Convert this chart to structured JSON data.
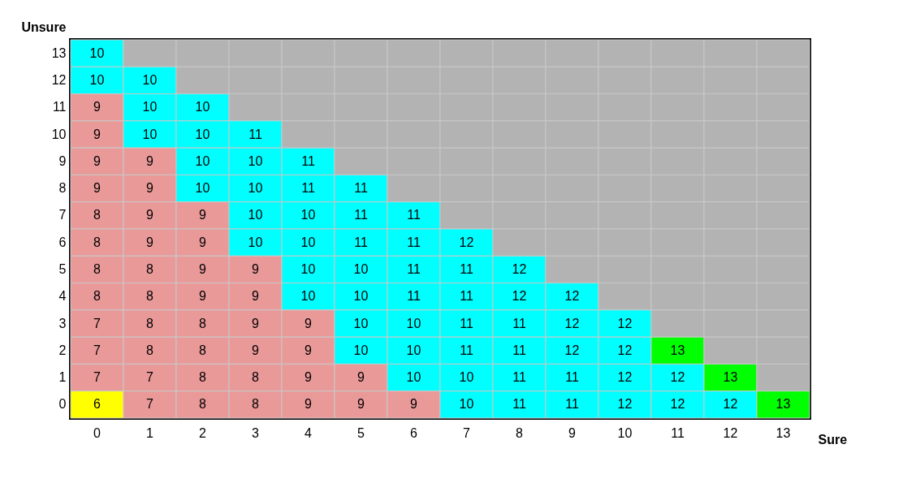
{
  "chart_data": {
    "type": "heatmap",
    "xlabel": "Sure",
    "ylabel": "Unsure",
    "data_labels": true,
    "categories": [
      "0",
      "1",
      "2",
      "3",
      "4",
      "5",
      "6",
      "7",
      "8",
      "9",
      "10",
      "11",
      "12",
      "13"
    ],
    "y_categories": [
      "13",
      "12",
      "11",
      "10",
      "9",
      "8",
      "7",
      "6",
      "5",
      "4",
      "3",
      "2",
      "1",
      "0"
    ],
    "cells": [
      [
        10,
        null,
        null,
        null,
        null,
        null,
        null,
        null,
        null,
        null,
        null,
        null,
        null,
        null
      ],
      [
        10,
        10,
        null,
        null,
        null,
        null,
        null,
        null,
        null,
        null,
        null,
        null,
        null,
        null
      ],
      [
        9,
        10,
        10,
        null,
        null,
        null,
        null,
        null,
        null,
        null,
        null,
        null,
        null,
        null
      ],
      [
        9,
        10,
        10,
        11,
        null,
        null,
        null,
        null,
        null,
        null,
        null,
        null,
        null,
        null
      ],
      [
        9,
        9,
        10,
        10,
        11,
        null,
        null,
        null,
        null,
        null,
        null,
        null,
        null,
        null
      ],
      [
        9,
        9,
        10,
        10,
        11,
        11,
        null,
        null,
        null,
        null,
        null,
        null,
        null,
        null
      ],
      [
        8,
        9,
        9,
        10,
        10,
        11,
        11,
        null,
        null,
        null,
        null,
        null,
        null,
        null
      ],
      [
        8,
        9,
        9,
        10,
        10,
        11,
        11,
        12,
        null,
        null,
        null,
        null,
        null,
        null
      ],
      [
        8,
        8,
        9,
        9,
        10,
        10,
        11,
        11,
        12,
        null,
        null,
        null,
        null,
        null
      ],
      [
        8,
        8,
        9,
        9,
        10,
        10,
        11,
        11,
        12,
        12,
        null,
        null,
        null,
        null
      ],
      [
        7,
        8,
        8,
        9,
        9,
        10,
        10,
        11,
        11,
        12,
        12,
        null,
        null,
        null
      ],
      [
        7,
        8,
        8,
        9,
        9,
        10,
        10,
        11,
        11,
        12,
        12,
        13,
        null,
        null
      ],
      [
        7,
        7,
        8,
        8,
        9,
        9,
        10,
        10,
        11,
        11,
        12,
        12,
        13,
        null
      ],
      [
        6,
        7,
        8,
        8,
        9,
        9,
        9,
        10,
        11,
        11,
        12,
        12,
        12,
        13
      ]
    ],
    "colors": [
      [
        "#00ffff",
        "#b3b3b3",
        "#b3b3b3",
        "#b3b3b3",
        "#b3b3b3",
        "#b3b3b3",
        "#b3b3b3",
        "#b3b3b3",
        "#b3b3b3",
        "#b3b3b3",
        "#b3b3b3",
        "#b3b3b3",
        "#b3b3b3",
        "#b3b3b3"
      ],
      [
        "#00ffff",
        "#00ffff",
        "#b3b3b3",
        "#b3b3b3",
        "#b3b3b3",
        "#b3b3b3",
        "#b3b3b3",
        "#b3b3b3",
        "#b3b3b3",
        "#b3b3b3",
        "#b3b3b3",
        "#b3b3b3",
        "#b3b3b3",
        "#b3b3b3"
      ],
      [
        "#ea9999",
        "#00ffff",
        "#00ffff",
        "#b3b3b3",
        "#b3b3b3",
        "#b3b3b3",
        "#b3b3b3",
        "#b3b3b3",
        "#b3b3b3",
        "#b3b3b3",
        "#b3b3b3",
        "#b3b3b3",
        "#b3b3b3",
        "#b3b3b3"
      ],
      [
        "#ea9999",
        "#00ffff",
        "#00ffff",
        "#00ffff",
        "#b3b3b3",
        "#b3b3b3",
        "#b3b3b3",
        "#b3b3b3",
        "#b3b3b3",
        "#b3b3b3",
        "#b3b3b3",
        "#b3b3b3",
        "#b3b3b3",
        "#b3b3b3"
      ],
      [
        "#ea9999",
        "#ea9999",
        "#00ffff",
        "#00ffff",
        "#00ffff",
        "#b3b3b3",
        "#b3b3b3",
        "#b3b3b3",
        "#b3b3b3",
        "#b3b3b3",
        "#b3b3b3",
        "#b3b3b3",
        "#b3b3b3",
        "#b3b3b3"
      ],
      [
        "#ea9999",
        "#ea9999",
        "#00ffff",
        "#00ffff",
        "#00ffff",
        "#00ffff",
        "#b3b3b3",
        "#b3b3b3",
        "#b3b3b3",
        "#b3b3b3",
        "#b3b3b3",
        "#b3b3b3",
        "#b3b3b3",
        "#b3b3b3"
      ],
      [
        "#ea9999",
        "#ea9999",
        "#ea9999",
        "#00ffff",
        "#00ffff",
        "#00ffff",
        "#00ffff",
        "#b3b3b3",
        "#b3b3b3",
        "#b3b3b3",
        "#b3b3b3",
        "#b3b3b3",
        "#b3b3b3",
        "#b3b3b3"
      ],
      [
        "#ea9999",
        "#ea9999",
        "#ea9999",
        "#00ffff",
        "#00ffff",
        "#00ffff",
        "#00ffff",
        "#00ffff",
        "#b3b3b3",
        "#b3b3b3",
        "#b3b3b3",
        "#b3b3b3",
        "#b3b3b3",
        "#b3b3b3"
      ],
      [
        "#ea9999",
        "#ea9999",
        "#ea9999",
        "#ea9999",
        "#00ffff",
        "#00ffff",
        "#00ffff",
        "#00ffff",
        "#00ffff",
        "#b3b3b3",
        "#b3b3b3",
        "#b3b3b3",
        "#b3b3b3",
        "#b3b3b3"
      ],
      [
        "#ea9999",
        "#ea9999",
        "#ea9999",
        "#ea9999",
        "#00ffff",
        "#00ffff",
        "#00ffff",
        "#00ffff",
        "#00ffff",
        "#00ffff",
        "#b3b3b3",
        "#b3b3b3",
        "#b3b3b3",
        "#b3b3b3"
      ],
      [
        "#ea9999",
        "#ea9999",
        "#ea9999",
        "#ea9999",
        "#ea9999",
        "#00ffff",
        "#00ffff",
        "#00ffff",
        "#00ffff",
        "#00ffff",
        "#00ffff",
        "#b3b3b3",
        "#b3b3b3",
        "#b3b3b3"
      ],
      [
        "#ea9999",
        "#ea9999",
        "#ea9999",
        "#ea9999",
        "#ea9999",
        "#00ffff",
        "#00ffff",
        "#00ffff",
        "#00ffff",
        "#00ffff",
        "#00ffff",
        "#00ff00",
        "#b3b3b3",
        "#b3b3b3"
      ],
      [
        "#ea9999",
        "#ea9999",
        "#ea9999",
        "#ea9999",
        "#ea9999",
        "#ea9999",
        "#00ffff",
        "#00ffff",
        "#00ffff",
        "#00ffff",
        "#00ffff",
        "#00ffff",
        "#00ff00",
        "#b3b3b3"
      ],
      [
        "#ffff00",
        "#ea9999",
        "#ea9999",
        "#ea9999",
        "#ea9999",
        "#ea9999",
        "#ea9999",
        "#00ffff",
        "#00ffff",
        "#00ffff",
        "#00ffff",
        "#00ffff",
        "#00ffff",
        "#00ff00"
      ]
    ]
  }
}
